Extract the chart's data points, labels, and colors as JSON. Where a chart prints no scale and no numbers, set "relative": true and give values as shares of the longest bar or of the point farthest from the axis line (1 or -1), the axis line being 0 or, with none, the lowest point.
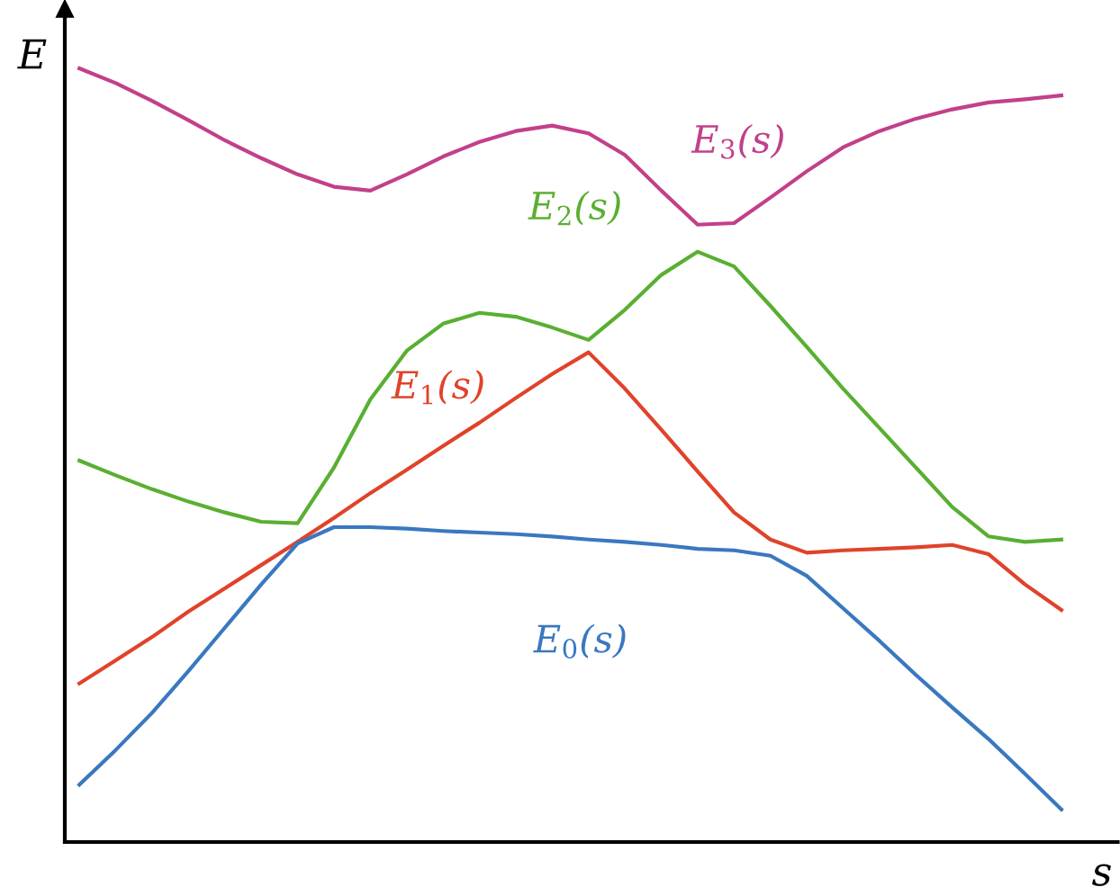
{
  "chart_data": {
    "type": "line",
    "relative": true,
    "xlabel": "s",
    "ylabel": "E",
    "categories": [
      null,
      null,
      null,
      null,
      null,
      null,
      null,
      null,
      null,
      null,
      null,
      null,
      null,
      null,
      null,
      null,
      null,
      null,
      null,
      null,
      null,
      null,
      null,
      null,
      null,
      null,
      null,
      null
    ],
    "series": [
      {
        "name": "E$_{3}$(s)",
        "color": "#c2408a",
        "values": [
          1.0,
          0.981,
          0.958,
          0.933,
          0.907,
          0.884,
          0.863,
          0.847,
          0.842,
          0.863,
          0.886,
          0.905,
          0.919,
          0.926,
          0.916,
          0.888,
          0.842,
          0.798,
          0.8,
          0.833,
          0.867,
          0.898,
          0.919,
          0.935,
          0.947,
          0.956,
          0.96,
          0.965
        ]
      },
      {
        "name": "E$_{2}$(s)",
        "color": "#5aaf32",
        "values": [
          0.493,
          0.474,
          0.456,
          0.44,
          0.426,
          0.414,
          0.412,
          0.484,
          0.572,
          0.635,
          0.67,
          0.684,
          0.679,
          0.665,
          0.649,
          0.688,
          0.733,
          0.763,
          0.744,
          0.693,
          0.64,
          0.586,
          0.535,
          0.484,
          0.433,
          0.395,
          0.388,
          0.391
        ]
      },
      {
        "name": "E$_{1}$(s)",
        "color": "#e0432a",
        "values": [
          0.205,
          0.235,
          0.265,
          0.298,
          0.328,
          0.358,
          0.388,
          0.419,
          0.451,
          0.481,
          0.512,
          0.542,
          0.574,
          0.605,
          0.633,
          0.586,
          0.533,
          0.479,
          0.426,
          0.391,
          0.374,
          0.377,
          0.379,
          0.381,
          0.384,
          0.372,
          0.333,
          0.3
        ]
      },
      {
        "name": "E$_{0}$(s)",
        "color": "#3a78c0",
        "values": [
          0.074,
          0.119,
          0.167,
          0.221,
          0.277,
          0.333,
          0.386,
          0.407,
          0.407,
          0.405,
          0.402,
          0.4,
          0.398,
          0.395,
          0.391,
          0.388,
          0.384,
          0.379,
          0.377,
          0.37,
          0.344,
          0.302,
          0.26,
          0.216,
          0.174,
          0.133,
          0.088,
          0.042
        ]
      }
    ]
  }
}
